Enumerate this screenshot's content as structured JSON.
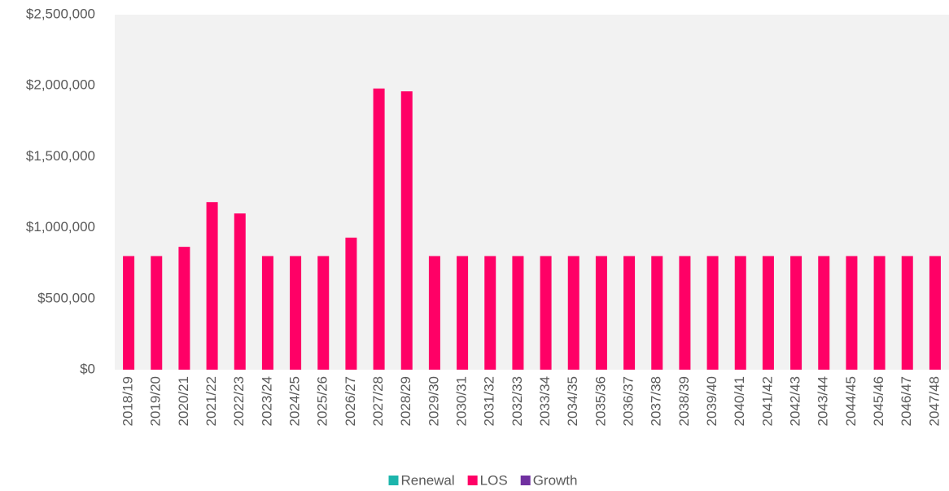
{
  "chart_data": {
    "type": "stacked_bar",
    "categories": [
      "2018/19",
      "2019/20",
      "2020/21",
      "2021/22",
      "2022/23",
      "2023/24",
      "2024/25",
      "2025/26",
      "2026/27",
      "2027/28",
      "2028/29",
      "2029/30",
      "2030/31",
      "2031/32",
      "2032/33",
      "2033/34",
      "2034/35",
      "2035/36",
      "2036/37",
      "2037/38",
      "2038/39",
      "2039/40",
      "2040/41",
      "2041/42",
      "2042/43",
      "2043/44",
      "2044/45",
      "2045/46",
      "2046/47",
      "2047/48"
    ],
    "series": [
      {
        "name": "Renewal",
        "color": "#1cb5ac",
        "values": [
          0,
          0,
          0,
          0,
          0,
          0,
          0,
          0,
          0,
          0,
          0,
          0,
          0,
          0,
          0,
          0,
          0,
          0,
          0,
          0,
          0,
          0,
          0,
          0,
          0,
          0,
          0,
          0,
          0,
          0
        ]
      },
      {
        "name": "LOS",
        "color": "#ff0066",
        "values": [
          800000,
          800000,
          865000,
          1180000,
          1100000,
          800000,
          800000,
          800000,
          930000,
          1980000,
          1960000,
          800000,
          800000,
          800000,
          800000,
          800000,
          800000,
          800000,
          800000,
          800000,
          800000,
          800000,
          800000,
          800000,
          800000,
          800000,
          800000,
          800000,
          800000,
          800000
        ]
      },
      {
        "name": "Growth",
        "color": "#7030a0",
        "values": [
          0,
          0,
          0,
          0,
          0,
          0,
          0,
          0,
          0,
          0,
          0,
          0,
          0,
          0,
          0,
          0,
          0,
          0,
          0,
          0,
          0,
          0,
          0,
          0,
          0,
          0,
          0,
          0,
          0,
          0
        ]
      }
    ],
    "ylim": [
      0,
      2500000
    ],
    "yticks": [
      {
        "value": 0,
        "label": "$0"
      },
      {
        "value": 500000,
        "label": "$500,000"
      },
      {
        "value": 1000000,
        "label": "$1,000,000"
      },
      {
        "value": 1500000,
        "label": "$1,500,000"
      },
      {
        "value": 2000000,
        "label": "$2,000,000"
      },
      {
        "value": 2500000,
        "label": "$2,500,000"
      }
    ],
    "grid": false,
    "legend": "bottom"
  }
}
